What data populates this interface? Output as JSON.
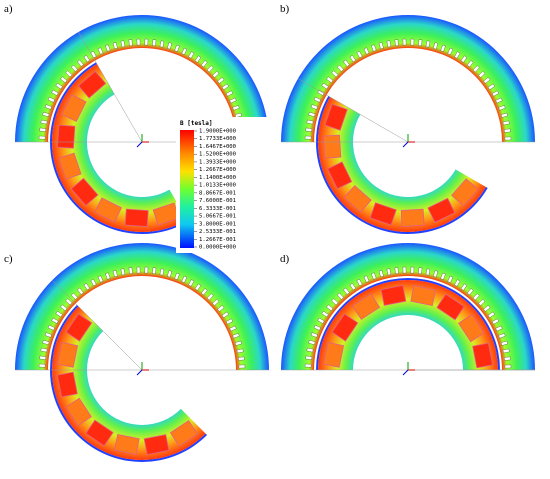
{
  "panels": [
    {
      "label": "a)"
    },
    {
      "label": "b)"
    },
    {
      "label": "c)"
    },
    {
      "label": "d)"
    }
  ],
  "legend": {
    "title": "B [tesla]",
    "labels": [
      "1.9000E+000",
      "1.7733E+000",
      "1.6467E+000",
      "1.5200E+000",
      "1.3933E+000",
      "1.2667E+000",
      "1.1400E+000",
      "1.0133E+000",
      "8.8667E-001",
      "7.6000E-001",
      "6.3333E-001",
      "5.0667E-001",
      "3.8000E-001",
      "2.5333E-001",
      "1.2667E-001",
      "0.0000E+000"
    ]
  }
}
